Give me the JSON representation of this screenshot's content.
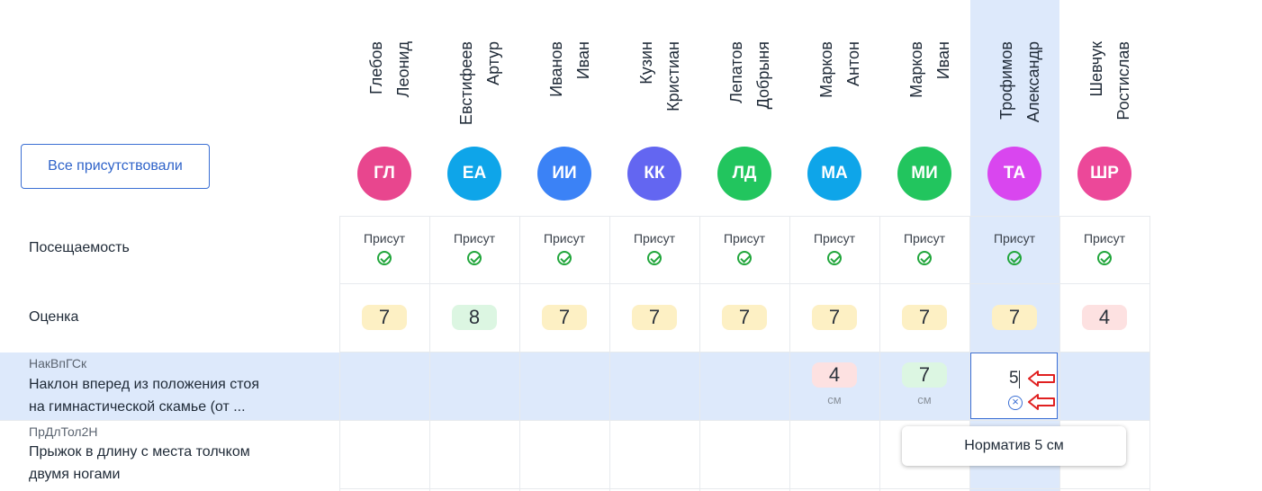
{
  "all_present_button": "Все присутствовали",
  "rows": {
    "attendance_label": "Посещаемость",
    "grade_label": "Оценка"
  },
  "students": [
    {
      "last": "Глебов",
      "first": "Леонид",
      "initials": "ГЛ",
      "color": "#e8468e",
      "attendance": "Присут",
      "grade": "7",
      "grade_color": "#fdf0c4"
    },
    {
      "last": "Евстифеев",
      "first": "Артур",
      "initials": "ЕА",
      "color": "#0ea5e9",
      "attendance": "Присут",
      "grade": "8",
      "grade_color": "#dcf6e2"
    },
    {
      "last": "Иванов",
      "first": "Иван",
      "initials": "ИИ",
      "color": "#3b82f6",
      "attendance": "Присут",
      "grade": "7",
      "grade_color": "#fdf0c4"
    },
    {
      "last": "Кузин",
      "first": "Кристиан",
      "initials": "КК",
      "color": "#6366f1",
      "attendance": "Присут",
      "grade": "7",
      "grade_color": "#fdf0c4"
    },
    {
      "last": "Лепатов",
      "first": "Добрыня",
      "initials": "ЛД",
      "color": "#22c55e",
      "attendance": "Присут",
      "grade": "7",
      "grade_color": "#fdf0c4"
    },
    {
      "last": "Марков",
      "first": "Антон",
      "initials": "МА",
      "color": "#0ea5e9",
      "attendance": "Присут",
      "grade": "7",
      "grade_color": "#fdf0c4"
    },
    {
      "last": "Марков",
      "first": "Иван",
      "initials": "МИ",
      "color": "#22c55e",
      "attendance": "Присут",
      "grade": "7",
      "grade_color": "#fdf0c4"
    },
    {
      "last": "Трофимов",
      "first": "Александр",
      "initials": "ТА",
      "color": "#d946ef",
      "attendance": "Присут",
      "grade": "7",
      "grade_color": "#fdf0c4"
    },
    {
      "last": "Шевчук",
      "first": "Ростислав",
      "initials": "ШР",
      "color": "#ec4899",
      "attendance": "Присут",
      "grade": "4",
      "grade_color": "#fde1e1"
    }
  ],
  "exercises": [
    {
      "code": "НакВпГСк",
      "title_line1": "Наклон вперед из положения стоя",
      "title_line2": "на гимнастической скамье (от ...",
      "results": [
        {
          "value": "4",
          "unit": "см",
          "color": "#fde1e1"
        },
        {
          "value": "7",
          "unit": "см",
          "color": "#dcf6e2"
        }
      ],
      "editing_value": "5",
      "clear_icon": "×"
    },
    {
      "code": "ПрДлТол2Н",
      "title_line1": "Прыжок в длину с места толчком",
      "title_line2": "двумя ногами"
    }
  ],
  "tooltip": "Норматив 5 см",
  "icons": {
    "check": "check-circle-icon",
    "clear": "clear-circle-icon",
    "arrow": "red-arrow-left-icon"
  }
}
